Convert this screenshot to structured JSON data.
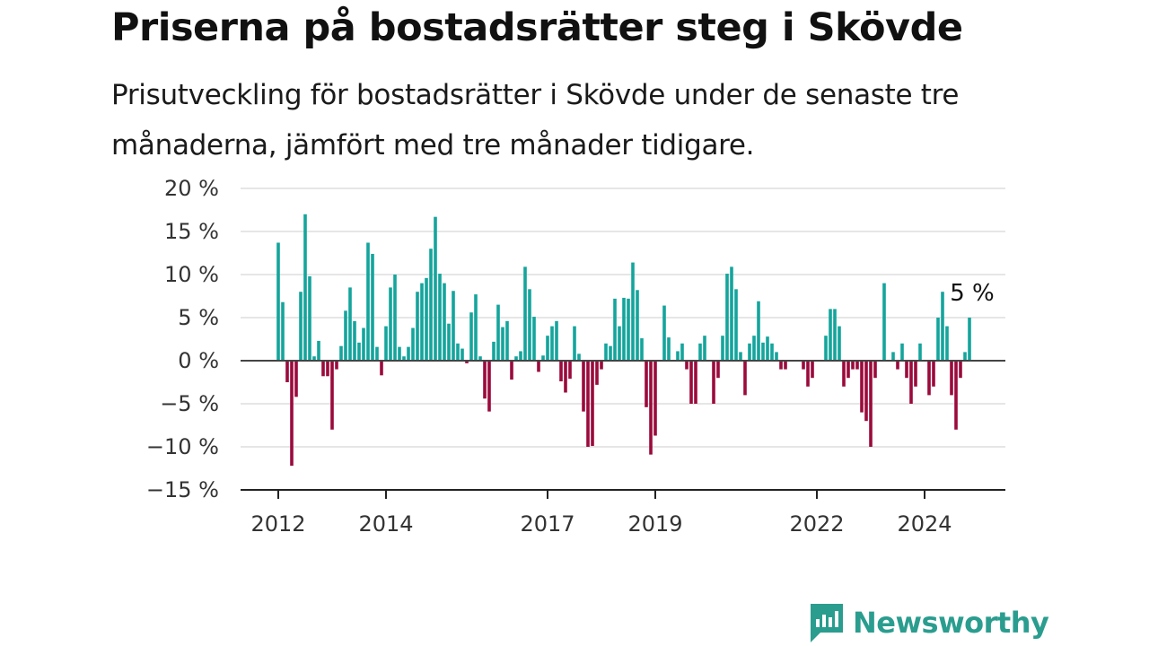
{
  "title": "Priserna på bostadsrätter steg i Skövde",
  "subtitle": "Prisutveckling för bostadsrätter i Skövde under de senaste tre månaderna, jämfört med tre månader tidigare.",
  "brand": {
    "name": "Newsworthy",
    "icon": "newsworthy-logo-icon"
  },
  "colors": {
    "positive": "#14a59c",
    "negative": "#9b0a3c",
    "grid": "#dddddd",
    "axis": "#444444",
    "brand": "#2a9d8f"
  },
  "chart_data": {
    "type": "bar",
    "ylim": [
      -15,
      20
    ],
    "y_ticks": [
      20,
      15,
      10,
      5,
      0,
      -5,
      -10,
      -15
    ],
    "y_tick_labels": [
      "20 %",
      "15 %",
      "10 %",
      "5 %",
      "0 %",
      "−5 %",
      "−10 %",
      "−15 %"
    ],
    "x_tick_labels": [
      {
        "label": "2012",
        "index": 0
      },
      {
        "label": "2014",
        "index": 24
      },
      {
        "label": "2017",
        "index": 60
      },
      {
        "label": "2019",
        "index": 84
      },
      {
        "label": "2022",
        "index": 120
      },
      {
        "label": "2024",
        "index": 144
      }
    ],
    "grid": true,
    "annotation": {
      "label": "5 %",
      "index": 154
    },
    "values": [
      13.7,
      6.8,
      -2.5,
      -12.2,
      -4.2,
      8.0,
      17.0,
      9.8,
      0.5,
      2.3,
      -1.8,
      -1.8,
      -8.0,
      -1.0,
      1.7,
      5.8,
      8.5,
      4.6,
      2.1,
      3.8,
      13.7,
      12.4,
      1.6,
      -1.7,
      4.0,
      8.5,
      10.0,
      1.6,
      0.5,
      1.6,
      3.8,
      8.0,
      9.0,
      9.6,
      13.0,
      16.7,
      10.1,
      9.0,
      4.3,
      8.1,
      2.0,
      1.4,
      -0.3,
      5.6,
      7.7,
      0.5,
      -4.4,
      -5.9,
      2.2,
      6.5,
      3.9,
      4.6,
      -2.2,
      0.5,
      1.1,
      10.9,
      8.3,
      5.1,
      -1.3,
      0.6,
      2.9,
      4.0,
      4.6,
      -2.4,
      -3.7,
      -2.1,
      4.0,
      0.8,
      -5.9,
      -10.0,
      -9.9,
      -2.8,
      -1.0,
      2.0,
      1.7,
      7.2,
      4.0,
      7.3,
      7.2,
      11.4,
      8.2,
      2.6,
      -5.4,
      -10.9,
      -8.7,
      0.0,
      6.4,
      2.7,
      0.0,
      1.1,
      2.0,
      -1.0,
      -5.0,
      -5.0,
      2.0,
      2.9,
      0.0,
      -5.0,
      -2.0,
      2.9,
      10.1,
      10.9,
      8.3,
      1.0,
      -4.0,
      2.0,
      2.9,
      6.9,
      2.1,
      2.8,
      2.0,
      1.0,
      -1.0,
      -1.0,
      0.0,
      0.0,
      0.0,
      -1.0,
      -3.0,
      -2.0,
      0.0,
      0.0,
      2.9,
      6.0,
      6.0,
      4.0,
      -3.0,
      -2.0,
      -1.0,
      -1.0,
      -6.0,
      -7.0,
      -10.0,
      -2.0,
      0.0,
      9.0,
      0.0,
      1.0,
      -1.0,
      2.0,
      -2.0,
      -5.0,
      -3.0,
      2.0,
      0.0,
      -4.0,
      -3.0,
      5.0,
      8.0,
      4.0,
      -4.0,
      -8.0,
      -2.0,
      1.0,
      5.0
    ]
  }
}
